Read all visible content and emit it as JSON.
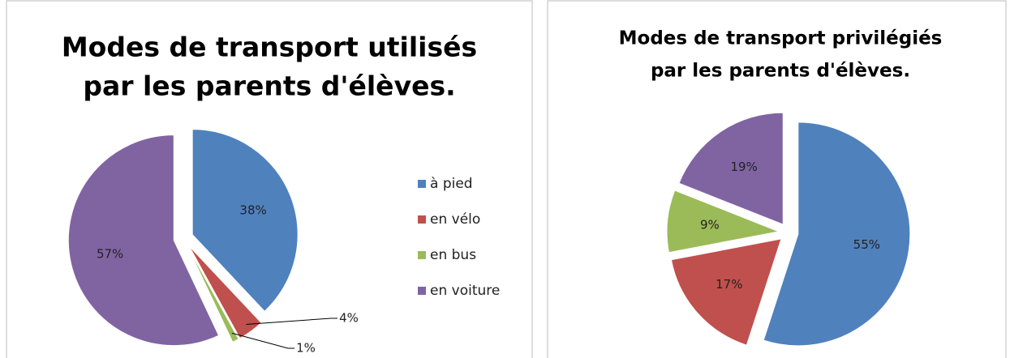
{
  "chart_data": [
    {
      "type": "pie",
      "title": [
        "Modes de transport utilisés",
        "par les parents d'élèves."
      ],
      "categories": [
        "à pied",
        "en vélo",
        "en bus",
        "en voiture"
      ],
      "values": [
        38,
        4,
        1,
        57
      ],
      "value_labels": [
        "38%",
        "4%",
        "1%",
        "57%"
      ],
      "colors": [
        "#4f81bd",
        "#c0504d",
        "#9bbb59",
        "#8064a2"
      ],
      "legend": "right"
    },
    {
      "type": "pie",
      "title": [
        "Modes de transport privilégiés",
        "par les parents d'élèves."
      ],
      "values": [
        55,
        17,
        9,
        19
      ],
      "value_labels": [
        "55%",
        "17%",
        "9%",
        "19%"
      ],
      "colors": [
        "#4f81bd",
        "#c0504d",
        "#9bbb59",
        "#8064a2"
      ]
    }
  ]
}
